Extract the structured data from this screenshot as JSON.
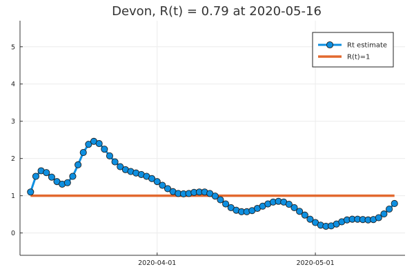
{
  "chart_data": {
    "type": "line",
    "title": "Devon, R(t) = 0.79 at 2020-05-16",
    "xlabel": "",
    "ylabel": "",
    "x_start_date": "2020-03-08",
    "x_end_date": "2020-05-16",
    "xlim": [
      "2020-03-06",
      "2020-05-18"
    ],
    "ylim": [
      -0.6,
      5.7
    ],
    "yticks": [
      0,
      1,
      2,
      3,
      4,
      5
    ],
    "xticks": [
      {
        "date": "2020-04-01",
        "label": "2020-04-01"
      },
      {
        "date": "2020-05-01",
        "label": "2020-05-01"
      }
    ],
    "grid": true,
    "legend_position": "top-right",
    "series": [
      {
        "name": "Rt estimate",
        "color": "#0e8fe0",
        "marker": "circle",
        "values": [
          1.1,
          1.52,
          1.67,
          1.62,
          1.5,
          1.38,
          1.31,
          1.35,
          1.52,
          1.83,
          2.16,
          2.38,
          2.46,
          2.4,
          2.25,
          2.07,
          1.91,
          1.78,
          1.7,
          1.65,
          1.61,
          1.57,
          1.52,
          1.46,
          1.38,
          1.28,
          1.19,
          1.11,
          1.06,
          1.05,
          1.06,
          1.09,
          1.1,
          1.1,
          1.06,
          0.99,
          0.89,
          0.78,
          0.68,
          0.61,
          0.57,
          0.57,
          0.6,
          0.66,
          0.72,
          0.78,
          0.83,
          0.85,
          0.83,
          0.77,
          0.68,
          0.58,
          0.48,
          0.37,
          0.28,
          0.21,
          0.18,
          0.19,
          0.24,
          0.3,
          0.35,
          0.37,
          0.37,
          0.36,
          0.35,
          0.36,
          0.41,
          0.51,
          0.64,
          0.79
        ]
      },
      {
        "name": "R(t)=1",
        "color": "#e2692f",
        "marker": "none",
        "values": [
          1,
          1
        ]
      }
    ]
  }
}
